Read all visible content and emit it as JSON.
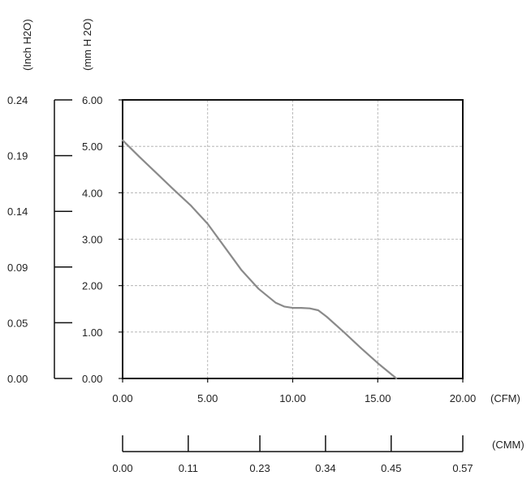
{
  "chart_data": {
    "type": "line",
    "x_unit": "(CFM)",
    "x_ticks": [
      "0.00",
      "5.00",
      "10.00",
      "15.00",
      "20.00"
    ],
    "xlim": [
      0,
      20
    ],
    "x_secondary_unit": "(CMM)",
    "x_secondary_ticks": [
      "0.00",
      "0.11",
      "0.23",
      "0.34",
      "0.45",
      "0.57"
    ],
    "y_unit": "(mm H 2O)",
    "y_ticks": [
      "0.00",
      "1.00",
      "2.00",
      "3.00",
      "4.00",
      "5.00",
      "6.00"
    ],
    "ylim": [
      0,
      6
    ],
    "y_secondary_unit": "(Inch H2O)",
    "y_secondary_ticks": [
      "0.00",
      "0.05",
      "0.09",
      "0.14",
      "0.19",
      "0.24"
    ],
    "grid": true,
    "line_color": "#8a8a8a",
    "series": [
      {
        "x": [
          0,
          1,
          2,
          3,
          4,
          5,
          6,
          7,
          8,
          9,
          9.5,
          10,
          10.5,
          11,
          11.5,
          12,
          13,
          14,
          15,
          16.1
        ],
        "y": [
          5.13,
          4.77,
          4.42,
          4.07,
          3.73,
          3.33,
          2.83,
          2.33,
          1.93,
          1.63,
          1.55,
          1.52,
          1.52,
          1.51,
          1.47,
          1.33,
          1.0,
          0.66,
          0.33,
          0.0
        ]
      }
    ]
  }
}
